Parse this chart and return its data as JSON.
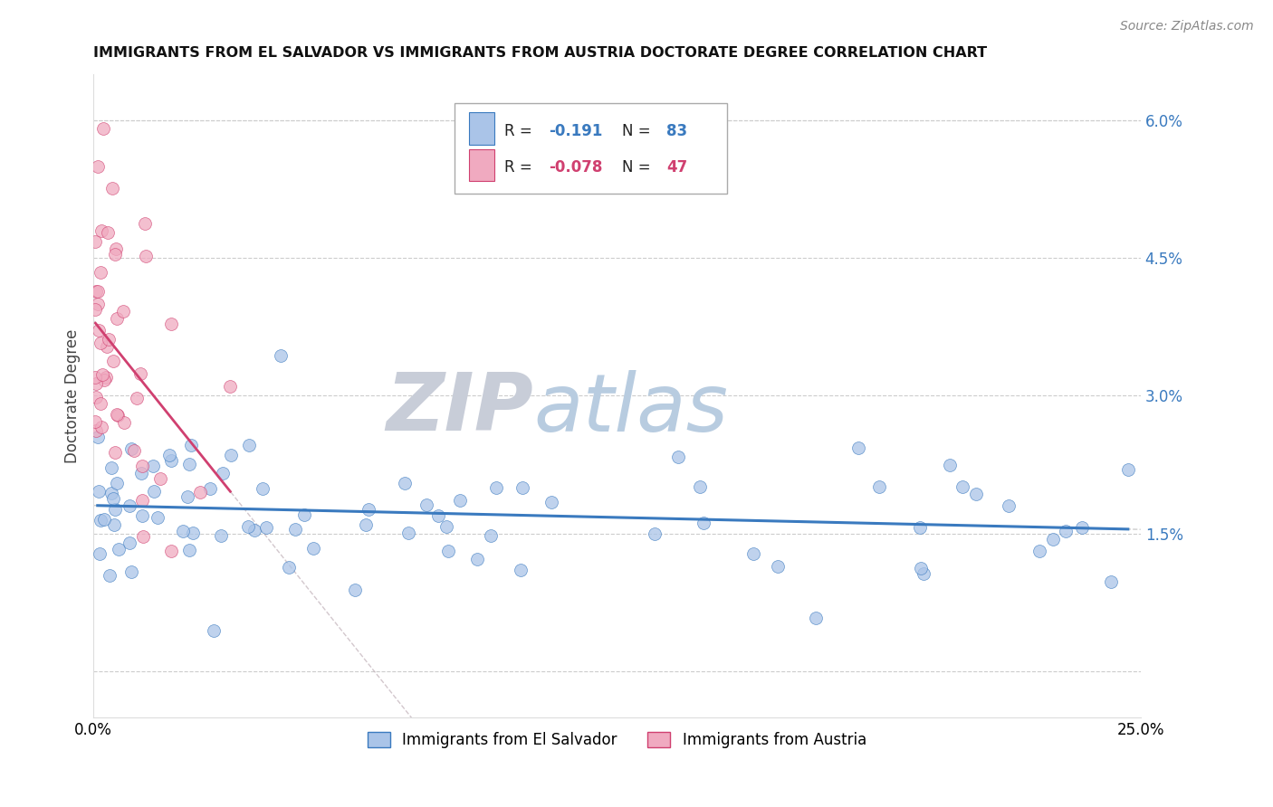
{
  "title": "IMMIGRANTS FROM EL SALVADOR VS IMMIGRANTS FROM AUSTRIA DOCTORATE DEGREE CORRELATION CHART",
  "source": "Source: ZipAtlas.com",
  "ylabel": "Doctorate Degree",
  "label1": "Immigrants from El Salvador",
  "label2": "Immigrants from Austria",
  "color1": "#aac4e8",
  "color2": "#f0aac0",
  "trendline1_color": "#3a7abf",
  "trendline2_color": "#d04070",
  "watermark_zip": "ZIP",
  "watermark_atlas": "atlas",
  "watermark_color_zip": "#c8cdd8",
  "watermark_color_atlas": "#b8cce0",
  "legend_r1_label": "R = ",
  "legend_r1_val": " -0.191",
  "legend_n1_label": "N = ",
  "legend_n1_val": "83",
  "legend_r2_label": "R = ",
  "legend_r2_val": "-0.078",
  "legend_n2_label": "N = ",
  "legend_n2_val": "47",
  "xmin": 0.0,
  "xmax": 0.25,
  "ymin": -0.005,
  "ymax": 0.065,
  "ytick_vals": [
    0.0,
    0.015,
    0.03,
    0.045,
    0.06
  ],
  "ytick_labels": [
    "",
    "1.5%",
    "3.0%",
    "4.5%",
    "6.0%"
  ],
  "seed1": 42,
  "seed2": 99,
  "n1": 83,
  "n2": 47
}
